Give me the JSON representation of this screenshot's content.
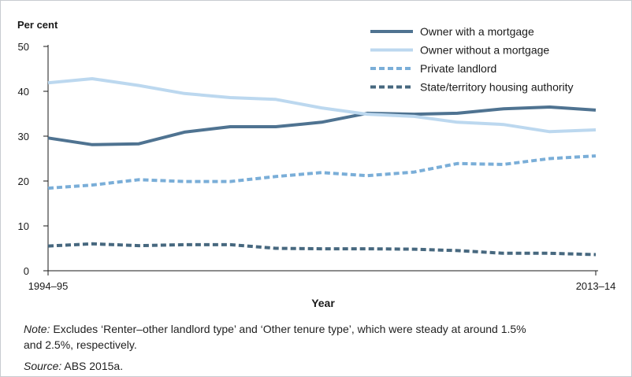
{
  "chart_data": {
    "type": "line",
    "ylabel": "Per cent",
    "xlabel": "Year",
    "ylim": [
      0,
      50
    ],
    "yticks": [
      "0",
      "10",
      "20",
      "30",
      "40",
      "50"
    ],
    "x_range": [
      0,
      19
    ],
    "x_tick_labels": [
      {
        "x": 0,
        "label": "1994–95"
      },
      {
        "x": 19,
        "label": "2013–14"
      }
    ],
    "x": [
      0,
      1,
      2,
      3,
      4,
      5,
      6,
      7,
      8,
      9,
      10,
      11,
      12
    ],
    "legend_position": "top-right",
    "series": [
      {
        "name": "Owner with a mortgage",
        "color": "#4f7391",
        "dash": "solid",
        "values": [
          29.6,
          28.1,
          28.3,
          30.9,
          32.1,
          32.1,
          33.1,
          35.1,
          34.9,
          35.1,
          36.1,
          36.5,
          35.8
        ],
        "x": [
          0,
          1.53,
          3.15,
          4.73,
          6.32,
          7.9,
          9.49,
          11.07,
          12.7,
          14.2,
          15.8,
          17.4,
          19
        ]
      },
      {
        "name": "Owner without a mortgage",
        "color": "#bcd8ef",
        "dash": "solid",
        "values": [
          41.9,
          42.8,
          41.3,
          39.5,
          38.6,
          38.2,
          36.3,
          34.9,
          34.4,
          33.1,
          32.6,
          31.0,
          31.4
        ],
        "x": [
          0,
          1.53,
          3.15,
          4.73,
          6.32,
          7.9,
          9.49,
          11.07,
          12.7,
          14.2,
          15.8,
          17.4,
          19
        ]
      },
      {
        "name": "Private landlord",
        "color": "#7aaed8",
        "dash": "dashed",
        "values": [
          18.4,
          19.1,
          20.3,
          19.9,
          19.9,
          21.0,
          21.9,
          21.2,
          22.0,
          23.9,
          23.7,
          25.0,
          25.6
        ],
        "x": [
          0,
          1.53,
          3.15,
          4.73,
          6.32,
          7.9,
          9.49,
          11.07,
          12.7,
          14.2,
          15.8,
          17.4,
          19
        ]
      },
      {
        "name": "State/territory housing authority",
        "color": "#47687f",
        "dash": "dashed",
        "values": [
          5.5,
          6.0,
          5.6,
          5.8,
          5.8,
          5.0,
          4.9,
          4.9,
          4.8,
          4.5,
          3.9,
          3.9,
          3.6
        ],
        "x": [
          0,
          1.53,
          3.15,
          4.73,
          6.32,
          7.9,
          9.49,
          11.07,
          12.7,
          14.2,
          15.8,
          17.4,
          19
        ]
      }
    ]
  },
  "notes": {
    "note_label": "Note:",
    "note_text": " Excludes ‘Renter–other landlord type’ and ‘Other tenure type’, which were steady at around 1.5%",
    "note_text_2": "and 2.5%, respectively.",
    "source_label": "Source:",
    "source_text": " ABS 2015a."
  }
}
